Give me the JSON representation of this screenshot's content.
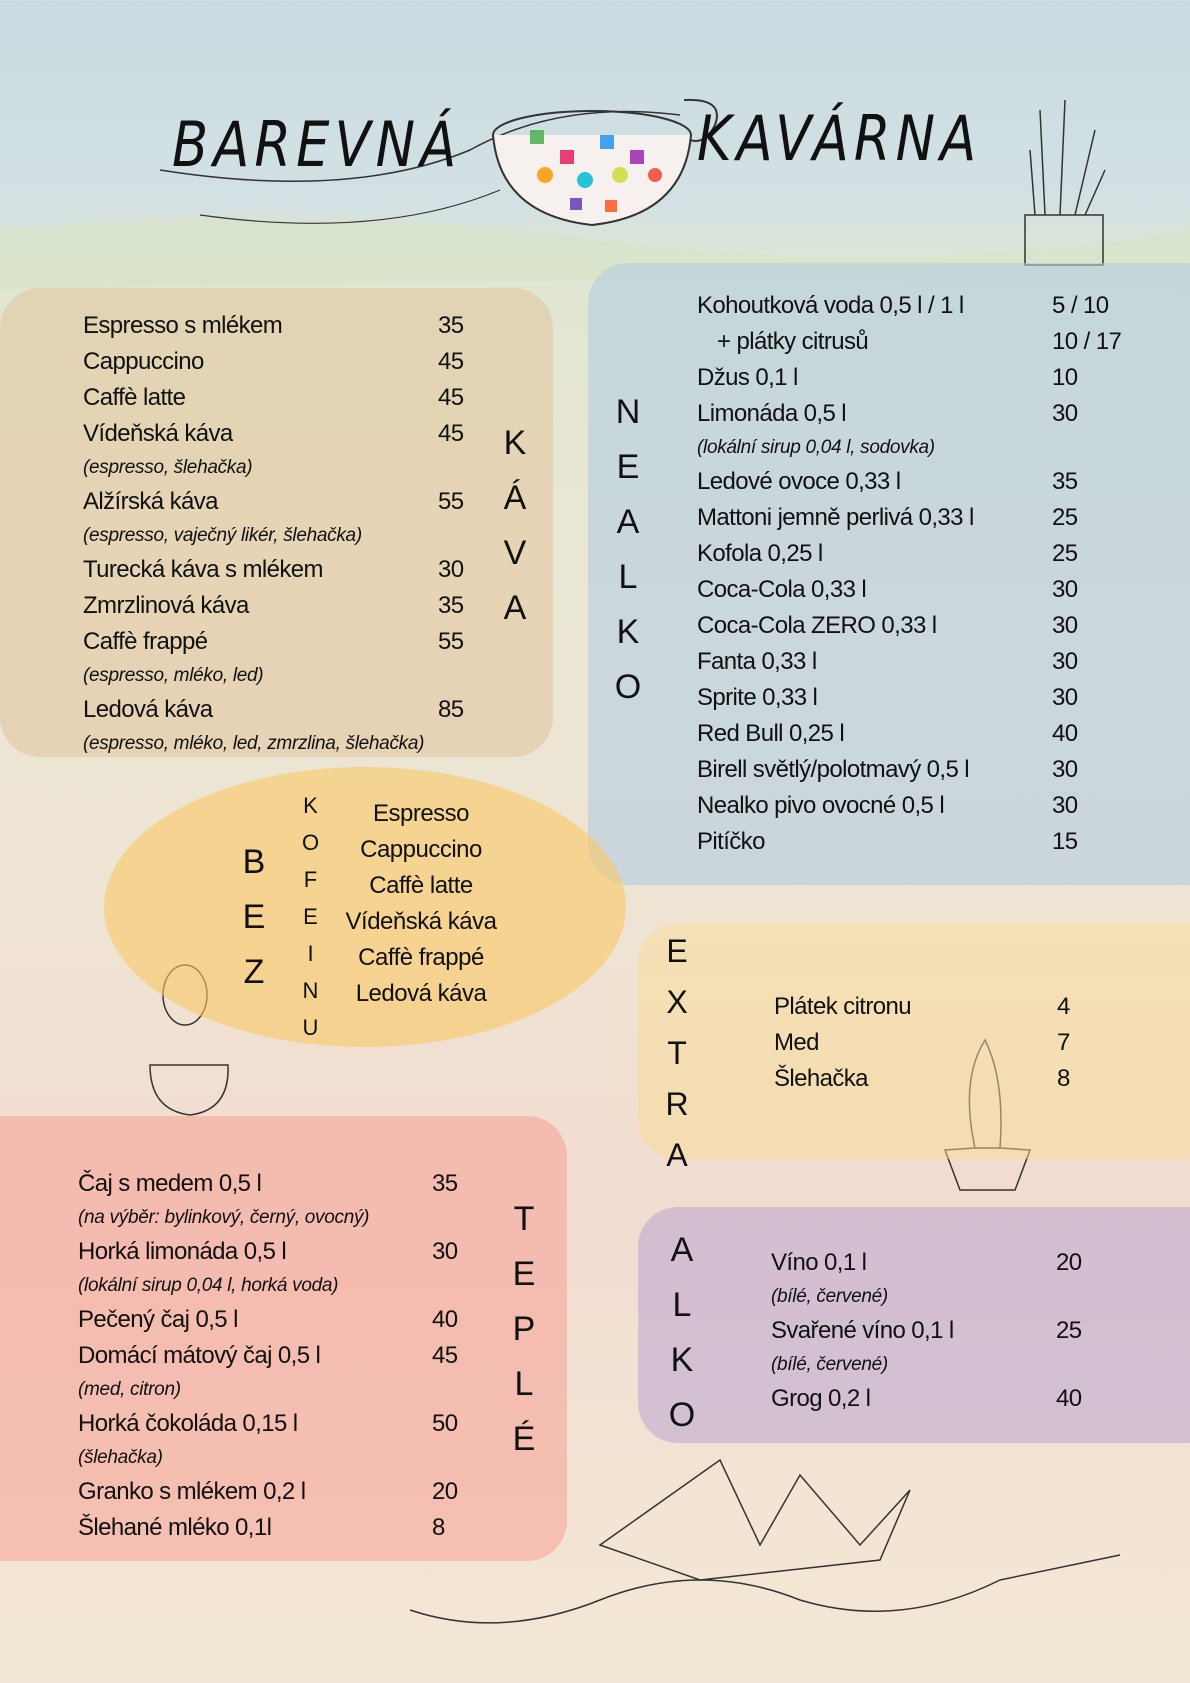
{
  "header": {
    "title_left": "BAREVNÁ",
    "title_right": "KAVÁRNA"
  },
  "kava": {
    "label": "KÁVA",
    "items": [
      {
        "name": "Espresso s mlékem",
        "price": "35"
      },
      {
        "name": "Cappuccino",
        "price": "45"
      },
      {
        "name": "Caffè latte",
        "price": "45"
      },
      {
        "name": "Vídeňská káva",
        "price": "45",
        "note": "(espresso, šlehačka)"
      },
      {
        "name": "Alžírská káva",
        "price": "55",
        "note": "(espresso, vaječný likér, šlehačka)"
      },
      {
        "name": "Turecká káva s mlékem",
        "price": "30"
      },
      {
        "name": "Zmrzlinová káva",
        "price": "35"
      },
      {
        "name": "Caffè frappé",
        "price": "55",
        "note": "(espresso, mléko, led)"
      },
      {
        "name": "Ledová káva",
        "price": "85",
        "note": "(espresso, mléko, led, zmrzlina, šlehačka)"
      }
    ]
  },
  "nealko": {
    "label": "NEALKO",
    "items": [
      {
        "name": "Kohoutková voda 0,5 l / 1 l",
        "price": "5 / 10"
      },
      {
        "name": "+ plátky citrusů",
        "price": "10 / 17"
      },
      {
        "name": "Džus 0,1 l",
        "price": "10"
      },
      {
        "name": "Limonáda 0,5 l",
        "price": "30",
        "note": "(lokální sirup 0,04 l, sodovka)"
      },
      {
        "name": "Ledové ovoce 0,33 l",
        "price": "35"
      },
      {
        "name": "Mattoni jemně perlivá 0,33 l",
        "price": "25"
      },
      {
        "name": "Kofola 0,25 l",
        "price": "25"
      },
      {
        "name": "Coca-Cola 0,33 l",
        "price": "30"
      },
      {
        "name": "Coca-Cola ZERO 0,33 l",
        "price": "30"
      },
      {
        "name": "Fanta 0,33 l",
        "price": "30"
      },
      {
        "name": "Sprite 0,33 l",
        "price": "30"
      },
      {
        "name": "Red Bull 0,25 l",
        "price": "40"
      },
      {
        "name": "Birell světlý/polotmavý 0,5 l",
        "price": "30"
      },
      {
        "name": "Nealko pivo ovocné 0,5 l",
        "price": "30"
      },
      {
        "name": "Pitíčko",
        "price": "15"
      }
    ]
  },
  "bez_kofeinu": {
    "label": "BEZ",
    "label2": "KOFEINU",
    "items": [
      "Espresso",
      "Cappuccino",
      "Caffè latte",
      "Vídeňská káva",
      "Caffè frappé",
      "Ledová káva"
    ]
  },
  "extra": {
    "label": "EXTRA",
    "items": [
      {
        "name": "Plátek citronu",
        "price": "4"
      },
      {
        "name": "Med",
        "price": "7"
      },
      {
        "name": "Šlehačka",
        "price": "8"
      }
    ]
  },
  "teple": {
    "label": "TEPLÉ",
    "items": [
      {
        "name": "Čaj s medem 0,5 l",
        "price": "35",
        "note": "(na výběr: bylinkový, černý, ovocný)"
      },
      {
        "name": "Horká limonáda 0,5 l",
        "price": "30",
        "note": "(lokální sirup 0,04 l, horká voda)"
      },
      {
        "name": "Pečený čaj 0,5 l",
        "price": "40"
      },
      {
        "name": "Domácí mátový čaj 0,5 l",
        "price": "45",
        "note": "(med, citron)"
      },
      {
        "name": "Horká čokoláda 0,15 l",
        "price": "50",
        "note": "(šlehačka)"
      },
      {
        "name": "Granko s mlékem 0,2 l",
        "price": "20"
      },
      {
        "name": "Šlehané mléko 0,1l",
        "price": "8"
      }
    ]
  },
  "alko": {
    "label": "ALKO",
    "items": [
      {
        "name": "Víno 0,1 l",
        "price": "20",
        "note": "(bílé, červené)"
      },
      {
        "name": "Svařené víno 0,1 l",
        "price": "25",
        "note": "(bílé, červené)"
      },
      {
        "name": "Grog 0,2 l",
        "price": "40"
      }
    ]
  }
}
